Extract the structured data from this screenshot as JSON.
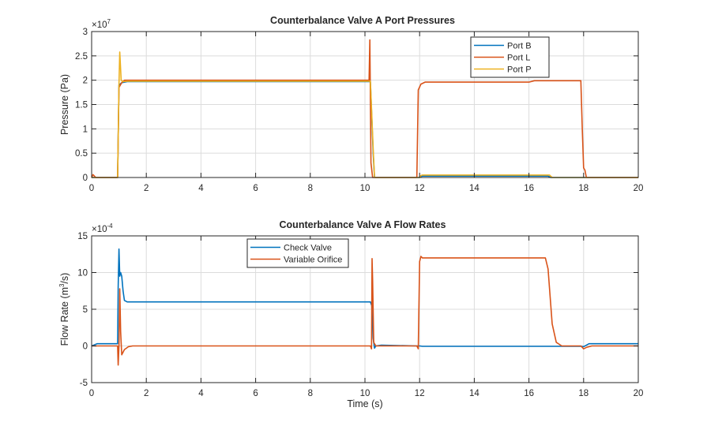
{
  "chart_data": [
    {
      "type": "line",
      "title": "Counterbalance Valve A Port Pressures",
      "xlabel": "",
      "ylabel": "Pressure (Pa)",
      "exponent_label": "×10",
      "exponent": "7",
      "xlim": [
        0,
        20
      ],
      "ylim": [
        0,
        3
      ],
      "xticks": [
        "0",
        "2",
        "4",
        "6",
        "8",
        "10",
        "12",
        "14",
        "16",
        "18",
        "20"
      ],
      "yticks": [
        "0",
        "0.5",
        "1",
        "1.5",
        "2",
        "2.5",
        "3"
      ],
      "ytick_values": [
        0,
        0.5,
        1,
        1.5,
        2,
        2.5,
        3
      ],
      "xtick_values": [
        0,
        2,
        4,
        6,
        8,
        10,
        12,
        14,
        16,
        18,
        20
      ],
      "grid": true,
      "legend_position": "top-right-center",
      "series": [
        {
          "name": "Port B",
          "color": "#0072BD",
          "x": [
            0,
            0.95,
            1.0,
            1.1,
            1.3,
            10.2,
            10.3,
            10.35,
            12.0,
            12.05,
            12.1,
            16.7,
            16.8,
            20
          ],
          "y": [
            0,
            0,
            1.9,
            1.95,
            1.97,
            1.97,
            0.5,
            0,
            0,
            0.02,
            0.03,
            0.03,
            0,
            0
          ]
        },
        {
          "name": "Port L",
          "color": "#D95319",
          "x": [
            0,
            0.05,
            0.1,
            0.15,
            0.95,
            1.0,
            1.1,
            1.2,
            1.3,
            10.15,
            10.18,
            10.22,
            10.28,
            10.35,
            11.9,
            11.95,
            12.05,
            12.2,
            12.4,
            16.0,
            16.2,
            17.9,
            17.95,
            18.0,
            18.05,
            18.1,
            20
          ],
          "y": [
            0,
            0.06,
            0.03,
            0,
            0,
            1.85,
            1.95,
            2.0,
            2.0,
            2.0,
            2.83,
            0.3,
            0,
            0,
            0,
            1.8,
            1.92,
            1.96,
            1.96,
            1.96,
            1.99,
            1.99,
            1.0,
            0.2,
            0.15,
            0,
            0
          ]
        },
        {
          "name": "Port P",
          "color": "#EDB120",
          "x": [
            0,
            0.95,
            1.0,
            1.03,
            1.08,
            1.15,
            1.3,
            10.2,
            10.3,
            10.35,
            12.0,
            12.05,
            12.1,
            16.75,
            16.85,
            20
          ],
          "y": [
            0,
            0,
            1.9,
            2.58,
            2.0,
            1.97,
            1.98,
            1.98,
            0.6,
            0,
            0,
            0.04,
            0.05,
            0.05,
            0,
            0
          ]
        }
      ]
    },
    {
      "type": "line",
      "title": "Counterbalance Valve A Flow Rates",
      "xlabel": "Time (s)",
      "ylabel": "Flow  Rate  (m",
      "ylabel_sup": "3",
      "ylabel_end": "/s)",
      "exponent_label": "×10",
      "exponent": "-4",
      "xlim": [
        0,
        20
      ],
      "ylim": [
        -5,
        15
      ],
      "xticks": [
        "0",
        "2",
        "4",
        "6",
        "8",
        "10",
        "12",
        "14",
        "16",
        "18",
        "20"
      ],
      "yticks": [
        "-5",
        "0",
        "5",
        "10",
        "15"
      ],
      "ytick_values": [
        -5,
        0,
        5,
        10,
        15
      ],
      "xtick_values": [
        0,
        2,
        4,
        6,
        8,
        10,
        12,
        14,
        16,
        18,
        20
      ],
      "grid": true,
      "legend_position": "top-left-center",
      "series": [
        {
          "name": "Check Valve",
          "color": "#0072BD",
          "x": [
            0,
            0.2,
            0.95,
            0.97,
            1.0,
            1.03,
            1.06,
            1.1,
            1.15,
            1.2,
            1.3,
            10.2,
            10.25,
            10.3,
            10.35,
            10.4,
            10.6,
            11.9,
            12.0,
            12.1,
            17.9,
            18.0,
            18.1,
            18.2,
            20
          ],
          "y": [
            0,
            0.3,
            0.3,
            8,
            13.2,
            9.5,
            10,
            9.5,
            7.5,
            6.2,
            6.0,
            6.0,
            5.5,
            1,
            -0.3,
            0,
            0.1,
            0,
            0,
            -0.05,
            -0.05,
            -0.1,
            0.1,
            0.3,
            0.3
          ]
        },
        {
          "name": "Variable Orifice",
          "color": "#D95319",
          "x": [
            0,
            0.9,
            0.95,
            0.97,
            1.0,
            1.03,
            1.06,
            1.1,
            1.2,
            1.35,
            1.5,
            10.2,
            10.24,
            10.26,
            10.28,
            10.32,
            10.4,
            11.9,
            11.95,
            12.0,
            12.05,
            12.1,
            12.2,
            16.6,
            16.7,
            16.85,
            17.0,
            17.2,
            17.9,
            18.0,
            18.1,
            18.3,
            20
          ],
          "y": [
            0,
            0,
            0,
            -2.6,
            0,
            7.8,
            2,
            -1.2,
            -0.5,
            -0.1,
            0,
            0,
            -0.4,
            11.9,
            9.0,
            0.5,
            0,
            0,
            -0.4,
            11.5,
            12.2,
            12.0,
            12.0,
            12.0,
            10.5,
            3,
            0.5,
            0,
            0,
            -0.4,
            -0.2,
            0,
            0
          ]
        }
      ]
    }
  ]
}
